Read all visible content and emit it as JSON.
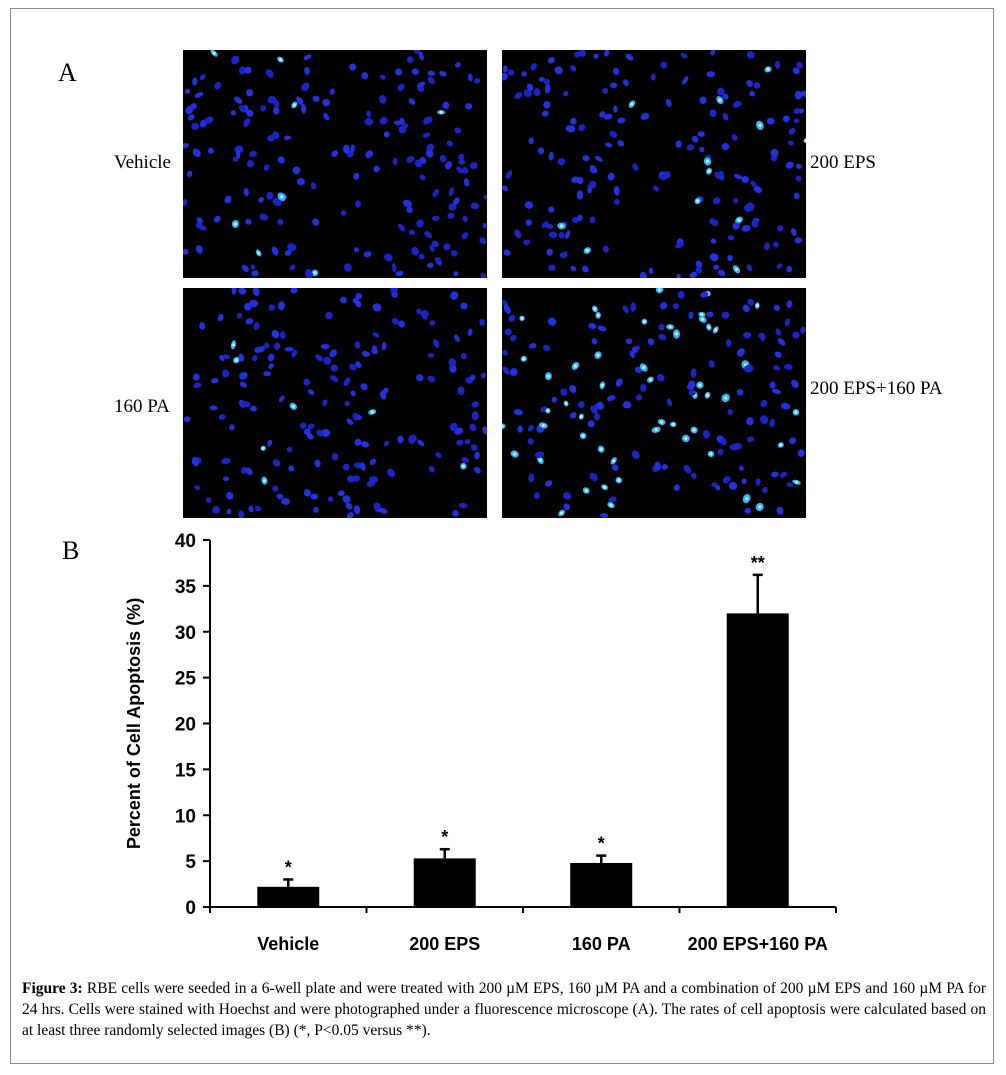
{
  "panel_a": {
    "letter": "A",
    "images": [
      {
        "label": "Vehicle",
        "bright_fraction": 0.02
      },
      {
        "label": "200 EPS",
        "bright_fraction": 0.06
      },
      {
        "label": "160 PA",
        "bright_fraction": 0.05
      },
      {
        "label": "200 EPS+160 PA",
        "bright_fraction": 0.3
      }
    ]
  },
  "panel_b": {
    "letter": "B"
  },
  "chart_data": {
    "type": "bar",
    "title": "",
    "xlabel": "",
    "ylabel": "Percent of Cell Apoptosis (%)",
    "ylim": [
      0,
      40
    ],
    "yticks": [
      0,
      5,
      10,
      15,
      20,
      25,
      30,
      35,
      40
    ],
    "categories": [
      "Vehicle",
      "200 EPS",
      "160 PA",
      "200 EPS+160 PA"
    ],
    "values": [
      2.2,
      5.3,
      4.8,
      32.0
    ],
    "error": [
      0.8,
      1.0,
      0.8,
      4.2
    ],
    "significance": [
      "*",
      "*",
      "*",
      "**"
    ],
    "bar_color": "#000000",
    "grid": false,
    "legend": "none"
  },
  "caption": {
    "label": "Figure 3:",
    "text": " RBE cells were seeded in a 6-well plate and were treated with 200 µM EPS, 160 µM PA and a combination of 200 µM EPS and 160 µM PA for 24 hrs. Cells were stained with Hoechst and were photographed under a fluorescence microscope (A). The rates of cell apoptosis were calculated based on at least three randomly selected images (B) (*, P<0.05 versus **)."
  }
}
